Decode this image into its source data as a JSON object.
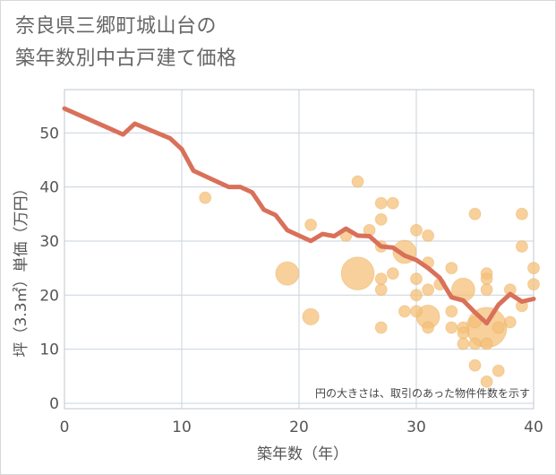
{
  "chart_data": {
    "type": "scatter",
    "title_lines": [
      "奈良県三郷町城山台の",
      "築年数別中古戸建て価格"
    ],
    "xlabel": "築年数（年）",
    "ylabel": "坪（3.3㎡）単価（万円）",
    "xlim": [
      0,
      40
    ],
    "ylim": [
      -1,
      58
    ],
    "xticks": [
      0,
      10,
      20,
      30,
      40
    ],
    "yticks": [
      0,
      10,
      20,
      30,
      40,
      50
    ],
    "grid": true,
    "annotation": "円の大きさは、取引のあった物件件数を示す",
    "colors": {
      "line": "#d9705a",
      "bubble": "#f4c07a",
      "bubble_edge": "#e8a84f",
      "grid": "#c9d3de"
    },
    "trend_line": {
      "x": [
        0,
        5,
        6,
        9,
        10,
        11,
        13,
        14,
        15,
        16,
        17,
        18,
        19,
        20,
        21,
        22,
        23,
        24,
        25,
        26,
        27,
        28,
        29,
        30,
        31,
        32,
        33,
        34,
        35,
        36,
        37,
        38,
        39,
        40
      ],
      "y": [
        54.5,
        49.7,
        51.7,
        49,
        47,
        43,
        41,
        40,
        40,
        39,
        35.8,
        34.8,
        32,
        31,
        30,
        31.3,
        30.9,
        32.3,
        31,
        30.9,
        29,
        28.8,
        27.3,
        26.5,
        25,
        23.2,
        19.6,
        19,
        16.8,
        14.8,
        18.2,
        20.2,
        18.8,
        19.3
      ]
    },
    "bubbles": {
      "x": [
        12,
        19,
        21,
        21,
        24,
        25,
        25,
        26,
        27,
        27,
        27,
        27,
        27,
        27,
        28,
        28,
        29,
        29,
        30,
        30,
        30,
        30,
        31,
        31,
        31,
        31,
        31,
        32,
        33,
        33,
        33,
        34,
        34,
        34,
        34,
        35,
        35,
        35,
        35,
        36,
        36,
        36,
        36,
        36,
        36,
        37,
        37,
        38,
        38,
        39,
        39,
        39,
        40,
        40
      ],
      "y": [
        38,
        24,
        16,
        33,
        31,
        24,
        41,
        32,
        37,
        34,
        29,
        23,
        21,
        14,
        37,
        24,
        28,
        17,
        32,
        23,
        20,
        17,
        31,
        26,
        21,
        16,
        14,
        22,
        25,
        17,
        14,
        21,
        14,
        13,
        11,
        35,
        15,
        11,
        7,
        24,
        23,
        21,
        14,
        11,
        4,
        14,
        6,
        21,
        15,
        35,
        29,
        18,
        25,
        22
      ],
      "size": [
        1,
        4,
        2,
        1,
        1,
        8,
        1,
        1,
        1,
        1,
        1,
        1,
        1,
        1,
        1,
        1,
        4,
        1,
        1,
        1,
        1,
        1,
        1,
        1,
        1,
        4,
        1,
        1,
        1,
        1,
        1,
        4,
        1,
        1,
        1,
        1,
        1,
        1,
        1,
        1,
        1,
        1,
        12,
        1,
        1,
        1,
        1,
        1,
        1,
        1,
        1,
        1,
        1,
        1
      ]
    }
  }
}
